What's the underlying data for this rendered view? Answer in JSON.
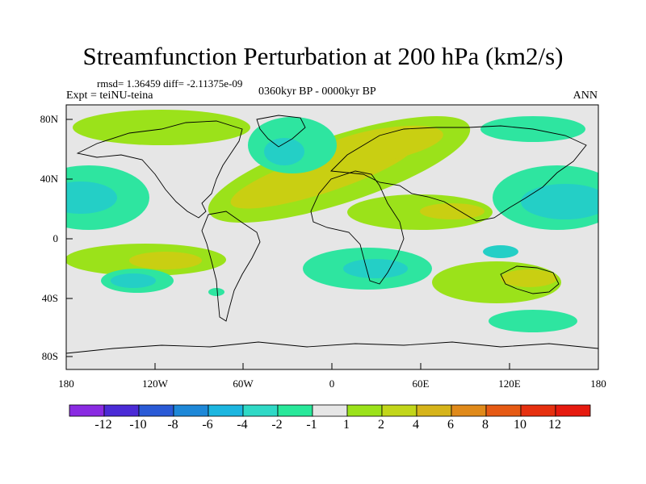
{
  "title": "Streamfunction Perturbation at 200 hPa (km2/s)",
  "stats_text": "rmsd= 1.36459 diff= -2.11375e-09",
  "subtitle": "0360kyr BP - 0000kyr BP",
  "left_label": "Expt = teiNU-teina",
  "right_label": "ANN",
  "axes": {
    "lat_labels": [
      "80N",
      "40N",
      "0",
      "40S",
      "80S"
    ],
    "lon_labels": [
      "180",
      "120W",
      "60W",
      "0",
      "60E",
      "120E",
      "180"
    ]
  },
  "colorbar": {
    "labels": [
      "-12",
      "-10",
      "-8",
      "-6",
      "-4",
      "-2",
      "-1",
      "1",
      "2",
      "4",
      "6",
      "8",
      "10",
      "12"
    ],
    "colors": [
      "#8a2be2",
      "#4b2bd6",
      "#2a5ad6",
      "#1e88d8",
      "#1cb6e0",
      "#2fd9c6",
      "#28e89a",
      "#e6e6e6",
      "#9be21a",
      "#c2d61a",
      "#d6b41a",
      "#e08a1a",
      "#e65a14",
      "#e6300f",
      "#e61a0f"
    ]
  },
  "map_colors": {
    "background": "#e6e6e6",
    "green": "#9be21a",
    "yellow": "#c9cf12",
    "mint": "#2ee5a0",
    "cyan": "#24cfc6",
    "blue": "#22b8dc"
  }
}
